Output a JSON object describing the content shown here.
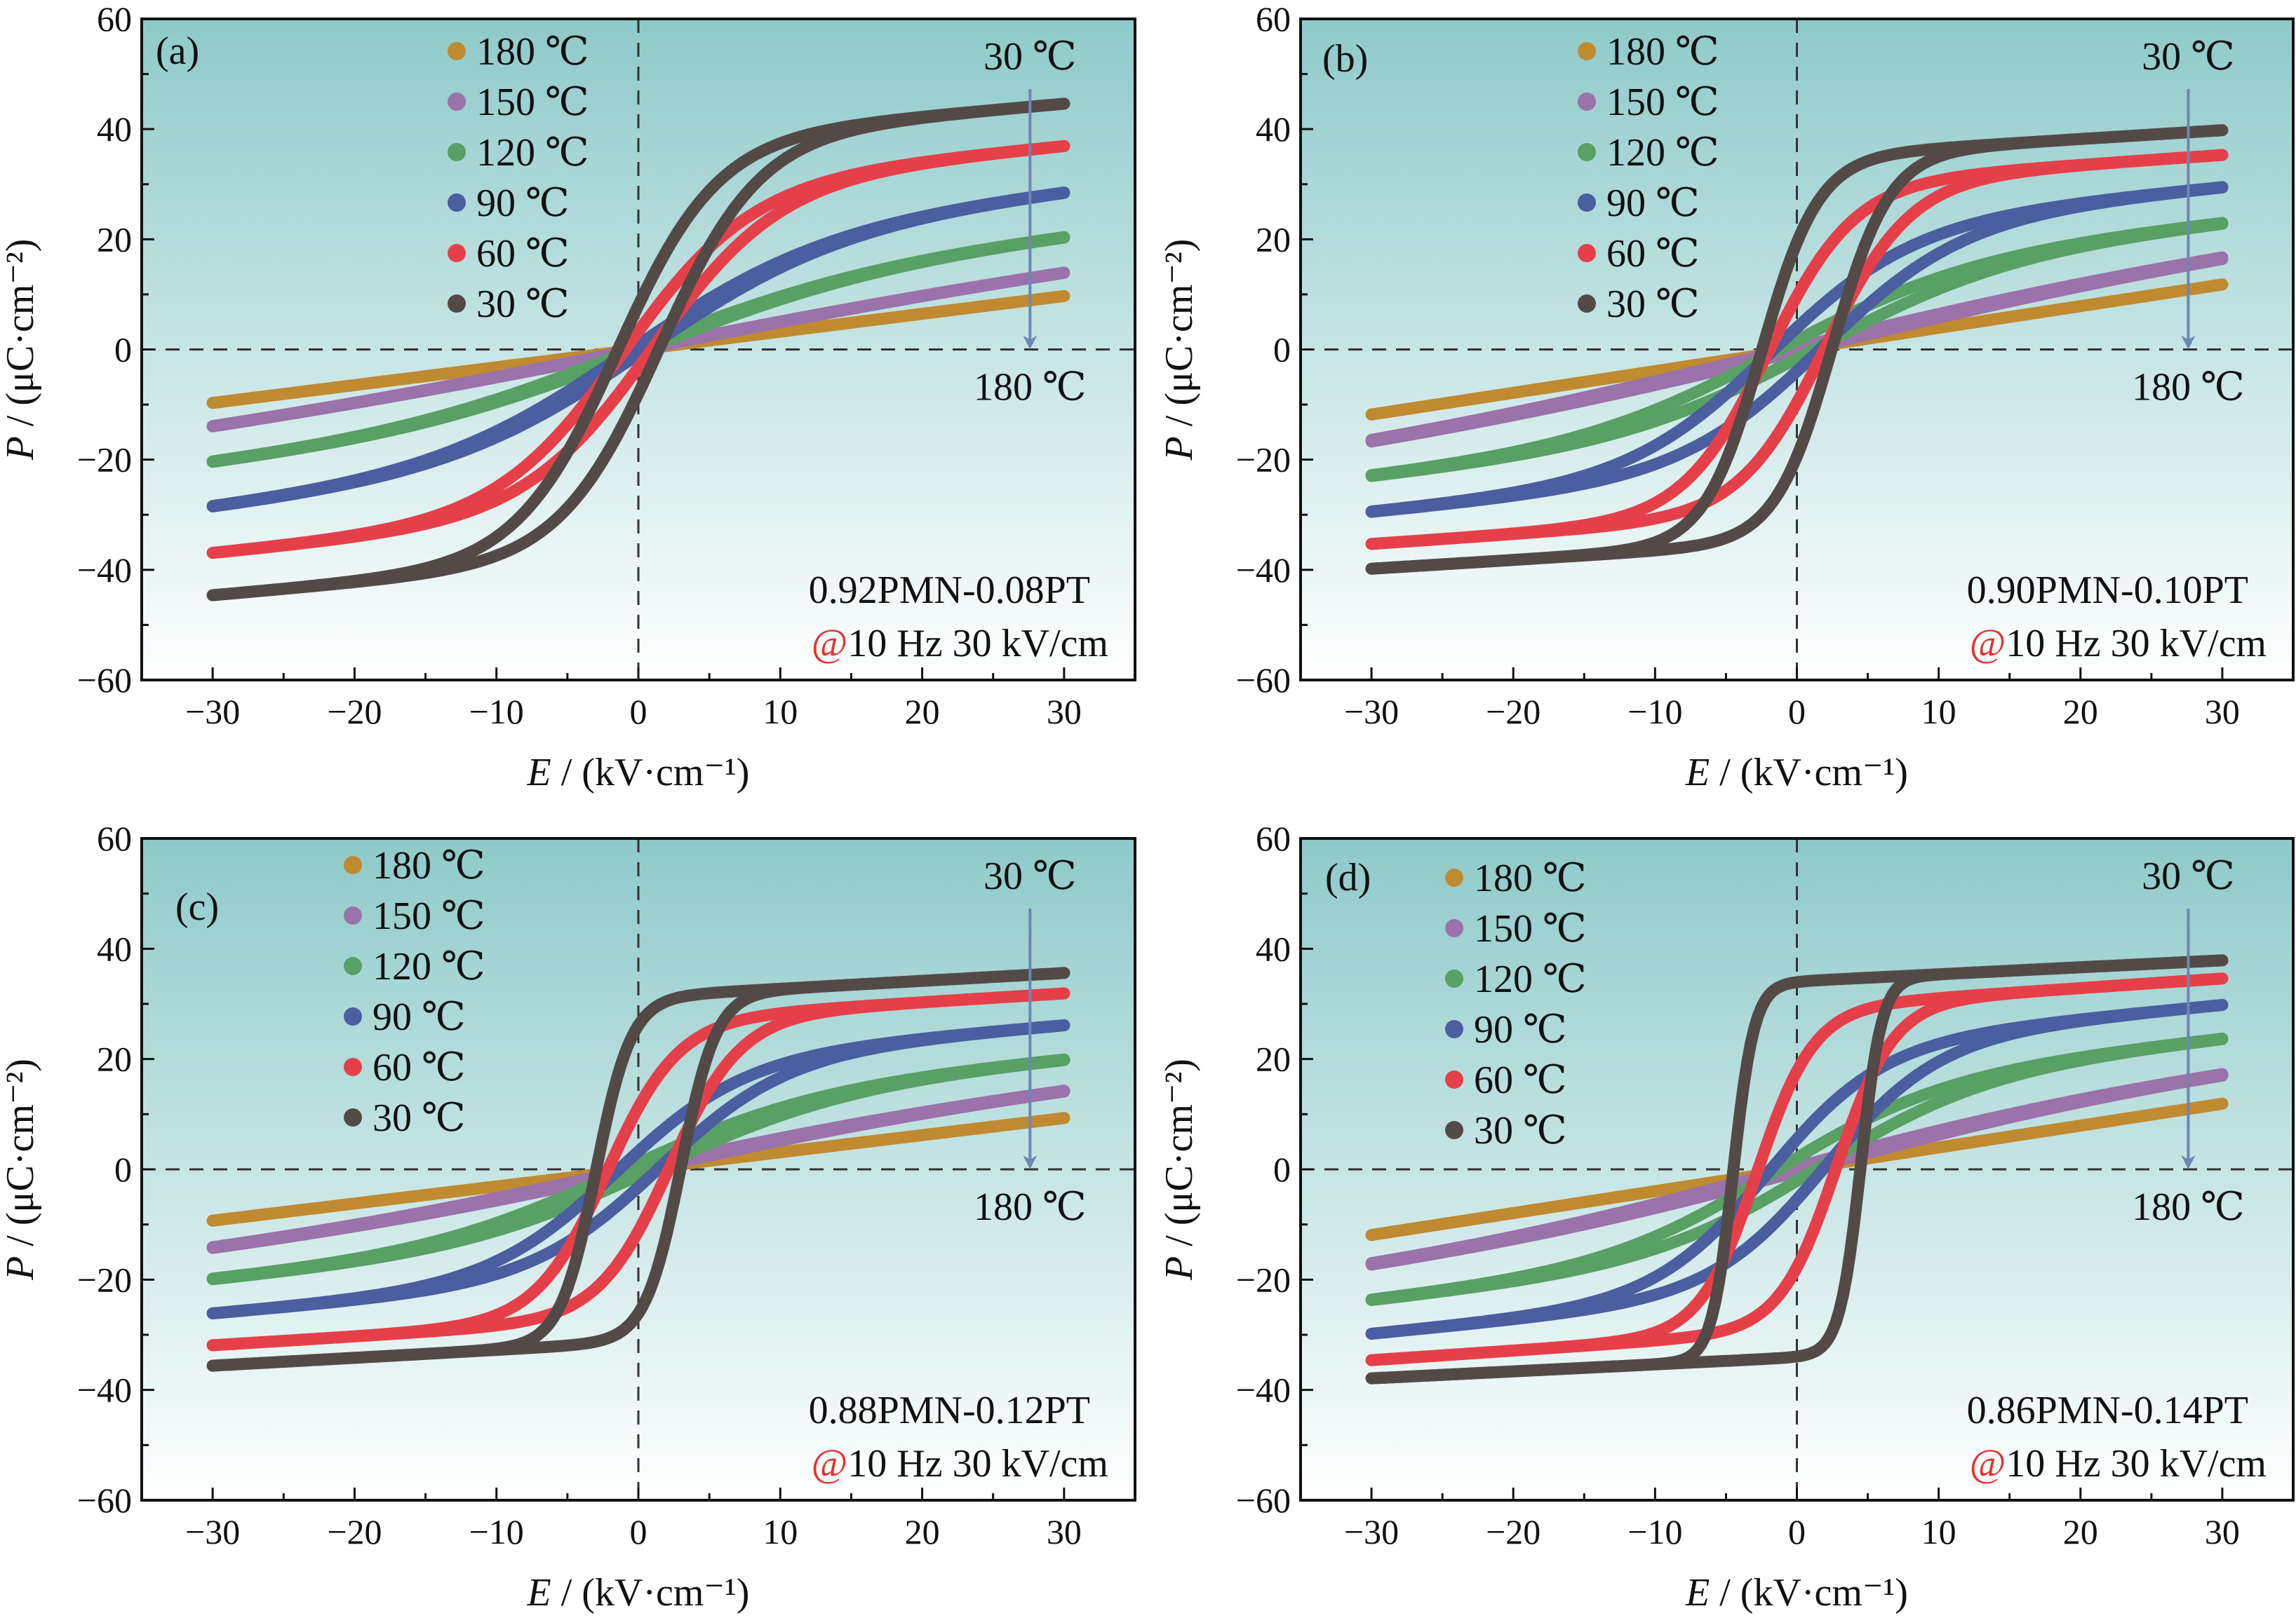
{
  "chart_data": [
    {
      "type": "scatter",
      "panel_label": "(a)",
      "composition": "0.92PMN-0.08PT",
      "condition_at": "@",
      "condition": "10 Hz  30 kV/cm",
      "arrow_top_label": "30 ℃",
      "arrow_bottom_label": "180 ℃",
      "series": [
        {
          "name": "180 ℃",
          "color": "#c08a30",
          "Pmax": 9.7,
          "Ec": 0.3,
          "width": 60,
          "linear_fraction": 1.0
        },
        {
          "name": "150 ℃",
          "color": "#9b72aa",
          "Pmax": 13.9,
          "Ec": 0.4,
          "width": 30,
          "linear_fraction": 0.7
        },
        {
          "name": "120 ℃",
          "color": "#58a064",
          "Pmax": 20.3,
          "Ec": 0.5,
          "width": 18,
          "linear_fraction": 0.4
        },
        {
          "name": "90 ℃",
          "color": "#4a5ea0",
          "Pmax": 28.4,
          "Ec": 0.6,
          "width": 14,
          "linear_fraction": 0.3
        },
        {
          "name": "60 ℃",
          "color": "#e5404a",
          "Pmax": 36.9,
          "Ec": 1.0,
          "width": 9,
          "linear_fraction": 0.2
        },
        {
          "name": "30 ℃",
          "color": "#534a48",
          "Pmax": 44.6,
          "Ec": 1.5,
          "width": 7,
          "linear_fraction": 0.15
        }
      ]
    },
    {
      "type": "scatter",
      "panel_label": "(b)",
      "composition": "0.90PMN-0.10PT",
      "condition_at": "@",
      "condition": "10 Hz  30 kV/cm",
      "arrow_top_label": "30 ℃",
      "arrow_bottom_label": "180 ℃",
      "series": [
        {
          "name": "180 ℃",
          "color": "#c08a30",
          "Pmax": 11.8,
          "Ec": 1.2,
          "width": 60,
          "linear_fraction": 1.0
        },
        {
          "name": "150 ℃",
          "color": "#9b72aa",
          "Pmax": 16.4,
          "Ec": 1.3,
          "width": 30,
          "linear_fraction": 0.6
        },
        {
          "name": "120 ℃",
          "color": "#58a064",
          "Pmax": 22.8,
          "Ec": 1.5,
          "width": 14,
          "linear_fraction": 0.35
        },
        {
          "name": "90 ℃",
          "color": "#4a5ea0",
          "Pmax": 29.4,
          "Ec": 1.8,
          "width": 10,
          "linear_fraction": 0.25
        },
        {
          "name": "60 ℃",
          "color": "#e5404a",
          "Pmax": 35.3,
          "Ec": 2.0,
          "width": 6,
          "linear_fraction": 0.15
        },
        {
          "name": "30 ℃",
          "color": "#534a48",
          "Pmax": 39.8,
          "Ec": 2.5,
          "width": 4,
          "linear_fraction": 0.12
        }
      ]
    },
    {
      "type": "scatter",
      "panel_label": "(c)",
      "composition": "0.88PMN-0.12PT",
      "condition_at": "@",
      "condition": "10 Hz  30 kV/cm",
      "arrow_top_label": "30 ℃",
      "arrow_bottom_label": "180 ℃",
      "series": [
        {
          "name": "180 ℃",
          "color": "#c08a30",
          "Pmax": 9.3,
          "Ec": 0.8,
          "width": 60,
          "linear_fraction": 1.0
        },
        {
          "name": "150 ℃",
          "color": "#9b72aa",
          "Pmax": 14.1,
          "Ec": 1.0,
          "width": 25,
          "linear_fraction": 0.6
        },
        {
          "name": "120 ℃",
          "color": "#58a064",
          "Pmax": 19.8,
          "Ec": 1.2,
          "width": 14,
          "linear_fraction": 0.35
        },
        {
          "name": "90 ℃",
          "color": "#4a5ea0",
          "Pmax": 26.1,
          "Ec": 1.5,
          "width": 9,
          "linear_fraction": 0.25
        },
        {
          "name": "60 ℃",
          "color": "#e5404a",
          "Pmax": 31.9,
          "Ec": 2.2,
          "width": 5,
          "linear_fraction": 0.15
        },
        {
          "name": "30 ℃",
          "color": "#534a48",
          "Pmax": 35.6,
          "Ec": 3.0,
          "width": 2.5,
          "linear_fraction": 0.12
        }
      ]
    },
    {
      "type": "scatter",
      "panel_label": "(d)",
      "composition": "0.86PMN-0.14PT",
      "condition_at": "@",
      "condition": "10 Hz  30 kV/cm",
      "arrow_top_label": "30 ℃",
      "arrow_bottom_label": "180 ℃",
      "series": [
        {
          "name": "180 ℃",
          "color": "#c08a30",
          "Pmax": 11.9,
          "Ec": 0.8,
          "width": 60,
          "linear_fraction": 1.0
        },
        {
          "name": "150 ℃",
          "color": "#9b72aa",
          "Pmax": 17.0,
          "Ec": 1.2,
          "width": 25,
          "linear_fraction": 0.55
        },
        {
          "name": "120 ℃",
          "color": "#58a064",
          "Pmax": 23.6,
          "Ec": 1.6,
          "width": 12,
          "linear_fraction": 0.35
        },
        {
          "name": "90 ℃",
          "color": "#4a5ea0",
          "Pmax": 29.8,
          "Ec": 2.0,
          "width": 8,
          "linear_fraction": 0.25
        },
        {
          "name": "60 ℃",
          "color": "#e5404a",
          "Pmax": 34.6,
          "Ec": 2.8,
          "width": 4,
          "linear_fraction": 0.15
        },
        {
          "name": "30 ℃",
          "color": "#534a48",
          "Pmax": 37.9,
          "Ec": 4.5,
          "width": 1.5,
          "linear_fraction": 0.1
        }
      ]
    }
  ],
  "axes": {
    "xlabel_var": "E",
    "xlabel_unit": " / (kV·cm⁻¹)",
    "ylabel_var": "P",
    "ylabel_unit": " / (μC·cm⁻²)",
    "xlim": [
      -35,
      35
    ],
    "ylim": [
      -60,
      60
    ],
    "xticks": [
      -30,
      -20,
      -10,
      0,
      10,
      20,
      30
    ],
    "xtick_labels": [
      "−30",
      "−20",
      "−10",
      "0",
      "10",
      "20",
      "30"
    ],
    "yticks": [
      -60,
      -40,
      -20,
      0,
      20,
      40,
      60
    ],
    "ytick_labels": [
      "−60",
      "−40",
      "−20",
      "0",
      "20",
      "40",
      "60"
    ]
  },
  "colors": {
    "bg_top": "#8ecac9",
    "bg_mid": "#c6e5e4",
    "bg_bottom": "#ffffff",
    "arrow": "#6e86b0",
    "at_sign": "#e53030"
  }
}
